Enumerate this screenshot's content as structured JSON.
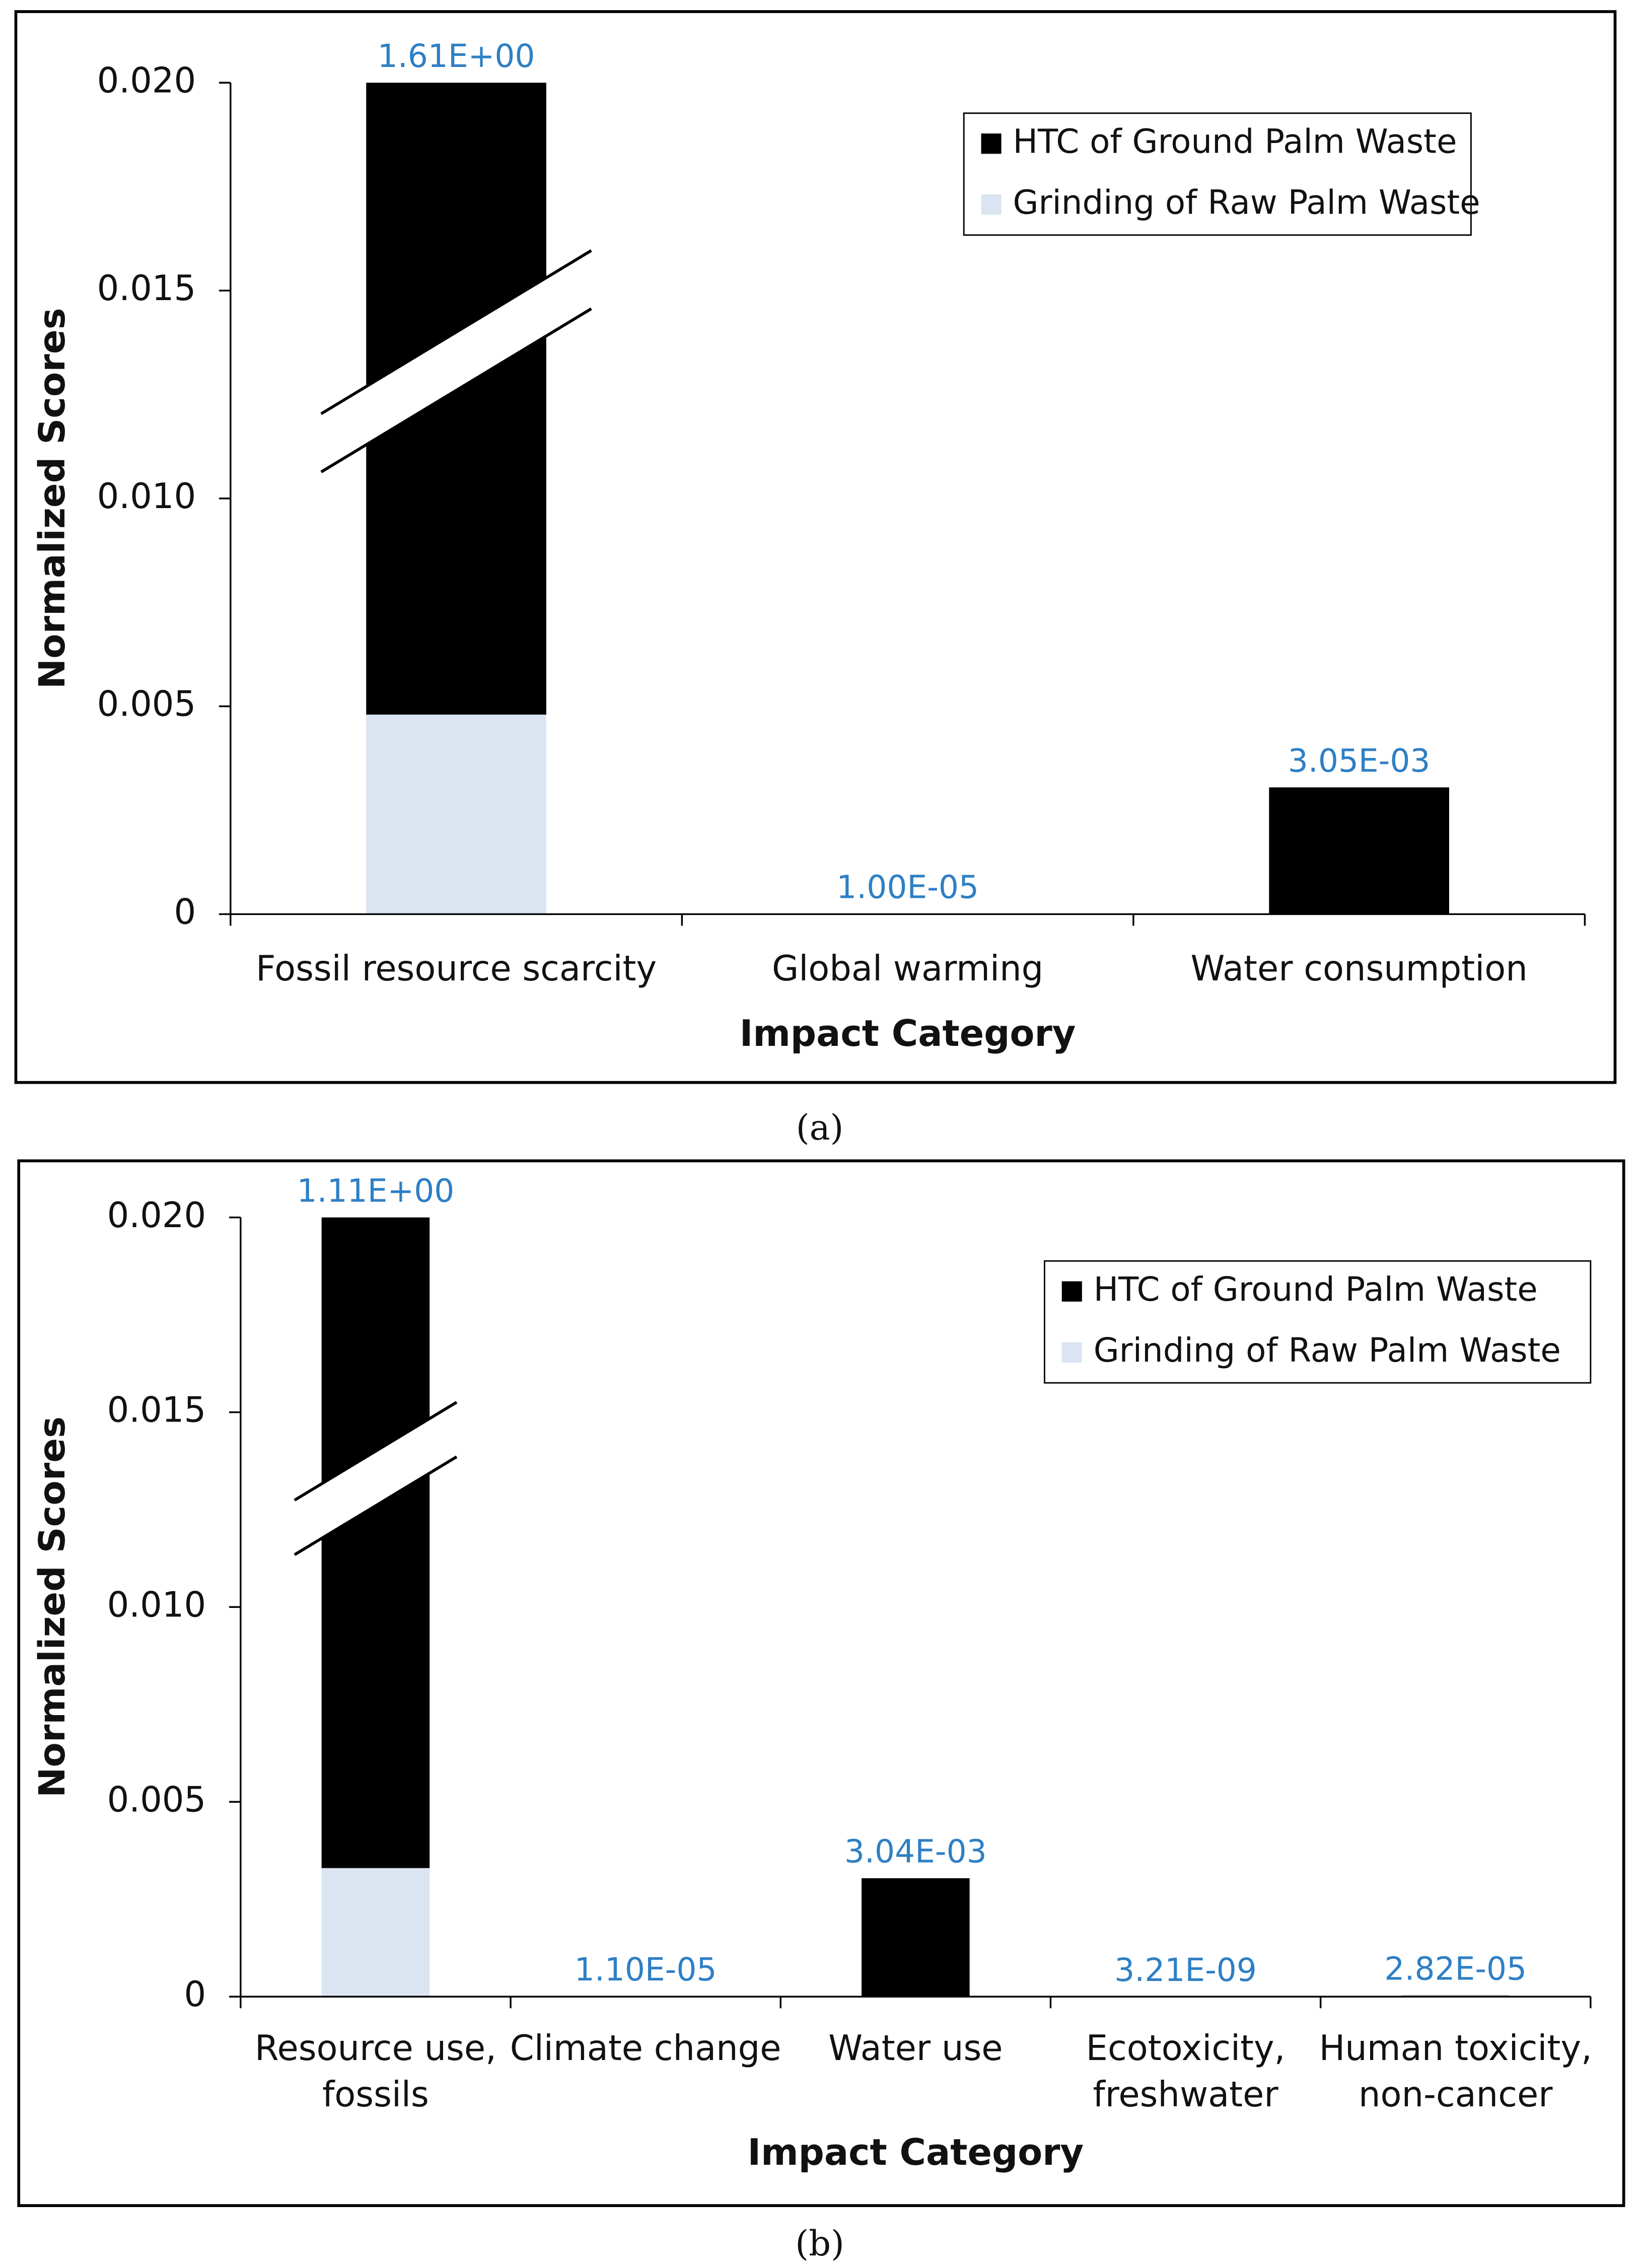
{
  "chart_data": [
    {
      "type": "bar",
      "stacked": true,
      "caption": "(a)",
      "xlabel": "Impact Category",
      "ylabel": "Normalized Scores",
      "categories": [
        "Fossil resource scarcity",
        "Global warming",
        "Water consumption"
      ],
      "series": [
        {
          "name": "HTC of Ground Palm Waste",
          "color": "#000000",
          "values": [
            1.6052,
            1e-05,
            0.00305
          ],
          "value_labels": [
            "1.61E+00",
            "1.00E-05",
            "3.05E-03"
          ]
        },
        {
          "name": "Grinding of Raw Palm Waste",
          "color": "#dae5f1",
          "values": [
            0.0048,
            0,
            0
          ]
        }
      ],
      "ylim": [
        0,
        0.02
      ],
      "yticks": [
        0,
        0.005,
        {
          "value": 0.01,
          "label": "0.010"
        },
        0.015,
        {
          "value": 0.02,
          "label": "0.020"
        }
      ],
      "axis_break": true,
      "legend": "upper right"
    },
    {
      "type": "bar",
      "stacked": true,
      "caption": "(b)",
      "xlabel": "Impact Category",
      "ylabel": "Normalized Scores",
      "categories": [
        "Resource use, fossils",
        "Climate change",
        "Water use",
        "Ecotoxicity, freshwater",
        "Human toxicity, non-cancer"
      ],
      "series": [
        {
          "name": "HTC of Ground Palm Waste",
          "color": "#000000",
          "values": [
            1.1067,
            1.1e-05,
            0.00304,
            3.21e-09,
            2.82e-05
          ],
          "value_labels": [
            "1.11E+00",
            "1.10E-05",
            "3.04E-03",
            "3.21E-09",
            "2.82E-05"
          ]
        },
        {
          "name": "Grinding of Raw Palm Waste",
          "color": "#dae5f1",
          "values": [
            0.0033,
            0,
            0,
            0,
            0
          ]
        }
      ],
      "ylim": [
        0,
        0.02
      ],
      "yticks": [
        0,
        0.005,
        {
          "value": 0.01,
          "label": "0.010"
        },
        0.015,
        {
          "value": 0.02,
          "label": "0.020"
        }
      ],
      "axis_break": true,
      "legend": "upper right"
    }
  ]
}
